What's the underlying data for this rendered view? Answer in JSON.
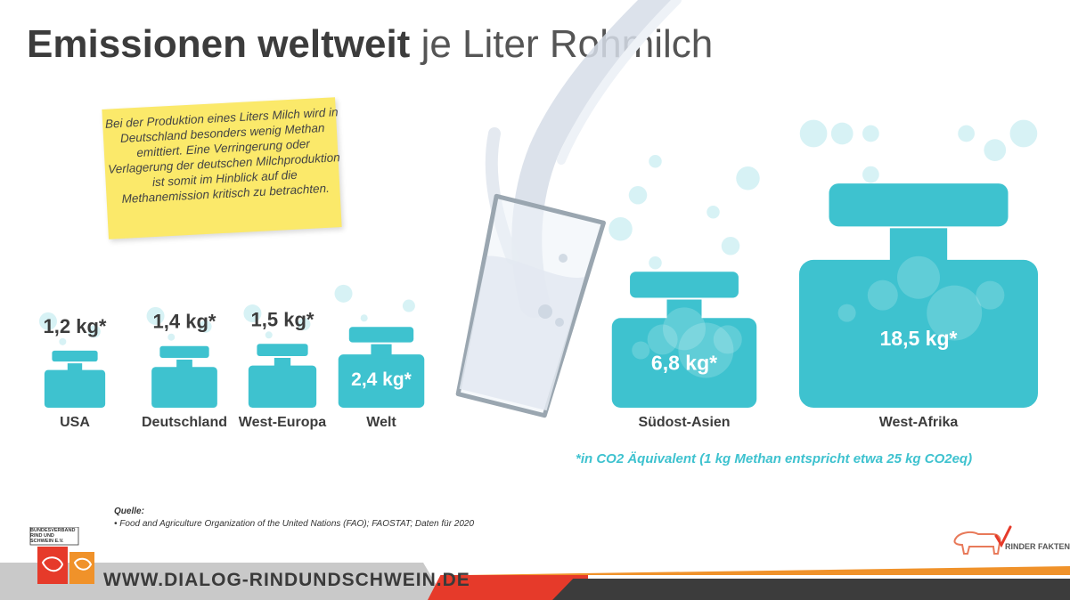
{
  "title": {
    "bold": "Emissionen weltweit",
    "light": " je Liter Rohmilch"
  },
  "note": "Bei der Produktion eines Liters Milch wird in Deutschland besonders wenig Methan emittiert. Eine Verringerung oder Verlagerung der deutschen Milchproduktion ist somit im Hinblick auf die Methanemission kritisch zu betrachten.",
  "chart_data": {
    "type": "bar",
    "categories": [
      "USA",
      "Deutschland",
      "West-Europa",
      "Welt",
      "Südost-Asien",
      "West-Afrika"
    ],
    "values": [
      1.2,
      1.4,
      1.5,
      2.4,
      6.8,
      18.5
    ],
    "value_labels": [
      "1,2 kg*",
      "1,4 kg*",
      "1,5 kg*",
      "2,4 kg*",
      "6,8 kg*",
      "18,5 kg*"
    ],
    "unit": "kg",
    "title": "Emissionen weltweit je Liter Rohmilch"
  },
  "footnote": "*in CO2 Äquivalent (1 kg Methan entspricht etwa 25 kg CO2eq)",
  "source": {
    "label": "Quelle:",
    "item": "•  Food and Agriculture Organization of the United Nations (FAO); FAOSTAT; Daten für 2020"
  },
  "footer": {
    "website": "WWW.DIALOG-RINDUNDSCHWEIN.DE",
    "org_logo_text": "BUNDESVERBAND RIND UND SCHWEIN E.V.",
    "right_logo_text": "RINDER FAKTEN"
  },
  "colors": {
    "teal": "#3ec2cf",
    "bubble": "#c9eef2",
    "glass": "#9aa6b0",
    "milk": "#d6dde8",
    "note": "#fbe96a",
    "accent_red": "#e63a2a",
    "accent_orange": "#f0922a"
  }
}
